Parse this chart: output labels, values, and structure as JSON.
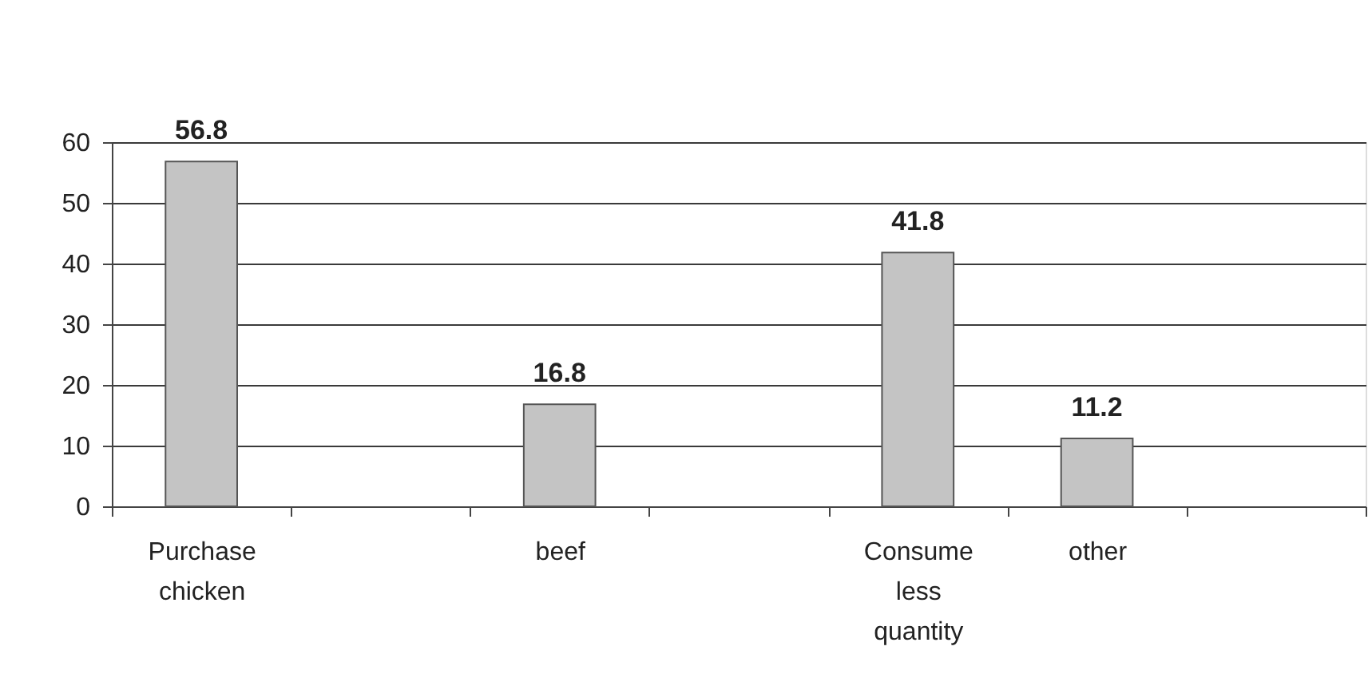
{
  "chart_data": {
    "type": "bar",
    "categories": [
      "Purchase chicken",
      null,
      "beef",
      null,
      "Consume less quantity",
      "other",
      null
    ],
    "values": [
      56.8,
      null,
      16.8,
      null,
      41.8,
      11.2,
      null
    ],
    "color": "#c4c4c4",
    "ylim": [
      0,
      60
    ],
    "yticks": [
      0,
      10,
      20,
      30,
      40,
      50,
      60
    ],
    "grid": "y",
    "data_labels": true
  }
}
